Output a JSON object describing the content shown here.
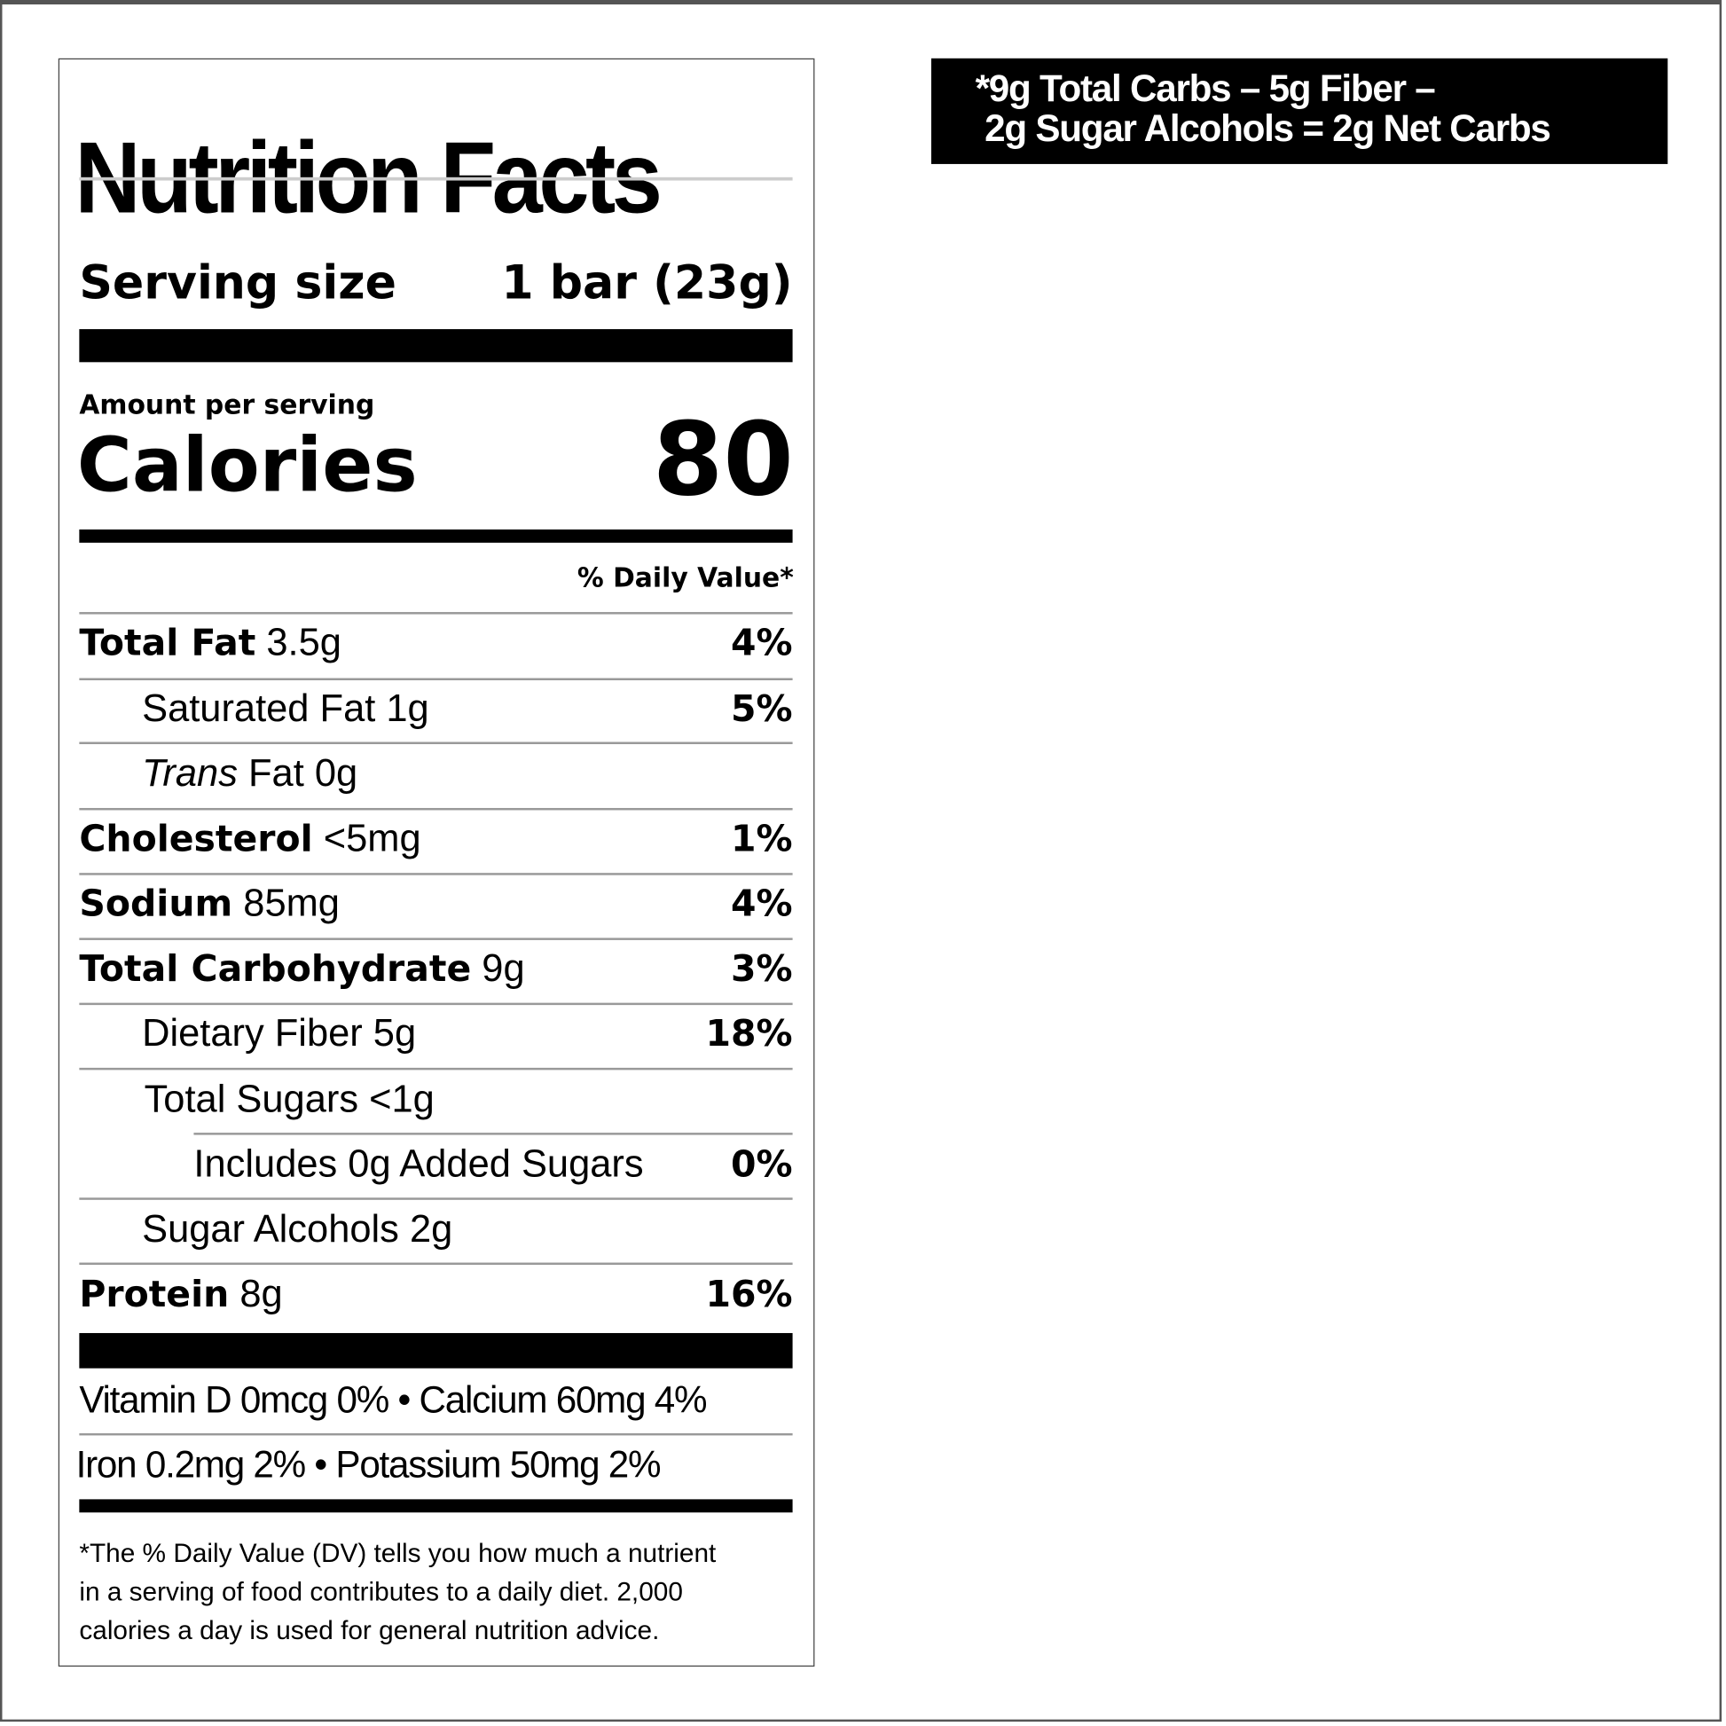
{
  "label": {
    "title": "Nutrition Facts",
    "serving_label": "Serving size",
    "serving_value": "1 bar (23g)",
    "amount_per_serving": "Amount per serving",
    "calories_label": "Calories",
    "calories_value": "80",
    "daily_value_header": "% Daily Value*",
    "nutrients": [
      {
        "name": "Total Fat",
        "amount": "3.5g",
        "dv": "4%"
      },
      {
        "name": "Saturated Fat",
        "amount": "1g",
        "dv": "5%"
      },
      {
        "name": "Trans",
        "name_rest": "Fat",
        "amount": "0g",
        "dv": ""
      },
      {
        "name": "Cholesterol",
        "amount": "<5mg",
        "dv": "1%"
      },
      {
        "name": "Sodium",
        "amount": "85mg",
        "dv": "4%"
      },
      {
        "name": "Total Carbohydrate",
        "amount": "9g",
        "dv": "3%"
      },
      {
        "name": "Dietary Fiber",
        "amount": "5g",
        "dv": "18%"
      },
      {
        "name": "Total Sugars",
        "amount": "<1g",
        "dv": ""
      },
      {
        "name": "Includes 0g Added Sugars",
        "amount": "",
        "dv": "0%"
      },
      {
        "name": "Sugar Alcohols",
        "amount": "2g",
        "dv": ""
      },
      {
        "name": "Protein",
        "amount": "8g",
        "dv": "16%"
      }
    ],
    "micros_line1": "Vitamin D 0mcg 0%  •  Calcium 60mg 4%",
    "micros_line2": "Iron 0.2mg 2%  •   Potassium 50mg 2%",
    "footnote": "*The % Daily Value (DV) tells you how much a nutrient\n in a serving of food contributes to a daily diet. 2,000\n calories a day is used for general nutrition advice."
  },
  "net_carbs": {
    "line1": "*9g Total Carbs – 5g Fiber –",
    "line2": " 2g Sugar Alcohols = 2g Net Carbs"
  }
}
